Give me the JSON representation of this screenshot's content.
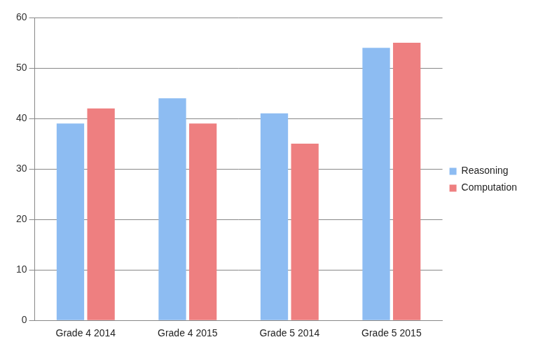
{
  "chart_data": {
    "type": "bar",
    "categories": [
      "Grade 4 2014",
      "Grade 4 2015",
      "Grade 5 2014",
      "Grade 5 2015"
    ],
    "series": [
      {
        "name": "Reasoning",
        "color": "#8dbcf2",
        "values": [
          39,
          44,
          41,
          54
        ]
      },
      {
        "name": "Computation",
        "color": "#ee7f80",
        "values": [
          42,
          39,
          35,
          55
        ]
      }
    ],
    "ylim": [
      0,
      60
    ],
    "yticks": [
      0,
      10,
      20,
      30,
      40,
      50,
      60
    ],
    "grid": true,
    "legend": "right"
  }
}
